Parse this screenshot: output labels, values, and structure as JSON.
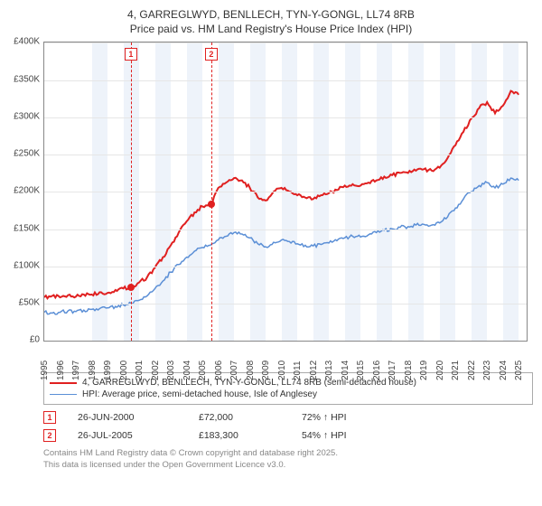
{
  "title_line1": "4, GARREGLWYD, BENLLECH, TYN-Y-GONGL, LL74 8RB",
  "title_line2": "Price paid vs. HM Land Registry's House Price Index (HPI)",
  "chart": {
    "type": "line",
    "background_color": "#ffffff",
    "grid_color": "#e6e6e6",
    "axis_color": "#888888",
    "band_color": "#eef3fa",
    "label_fontsize": 10,
    "x_years": [
      1995,
      1996,
      1997,
      1998,
      1999,
      2000,
      2001,
      2002,
      2003,
      2004,
      2005,
      2006,
      2007,
      2008,
      2009,
      2010,
      2011,
      2012,
      2013,
      2014,
      2015,
      2016,
      2017,
      2018,
      2019,
      2020,
      2021,
      2022,
      2023,
      2024,
      2025
    ],
    "xlim": [
      1995,
      2025.5
    ],
    "ylim": [
      0,
      400000
    ],
    "ytick_step": 50000,
    "y_tick_labels": [
      "£0",
      "£50K",
      "£100K",
      "£150K",
      "£200K",
      "£250K",
      "£300K",
      "£350K",
      "£400K"
    ],
    "alt_band_start_index": 3,
    "series": [
      {
        "id": "price_paid",
        "label": "4, GARREGLWYD, BENLLECH, TYN-Y-GONGL, LL74 8RB (semi-detached house)",
        "color": "#e02020",
        "line_width": 2,
        "data": [
          [
            1995.0,
            58000
          ],
          [
            1995.5,
            60000
          ],
          [
            1996.0,
            58000
          ],
          [
            1996.5,
            61000
          ],
          [
            1997.0,
            59000
          ],
          [
            1997.5,
            62000
          ],
          [
            1998.0,
            62000
          ],
          [
            1998.5,
            65000
          ],
          [
            1999.0,
            64000
          ],
          [
            1999.5,
            68000
          ],
          [
            2000.0,
            70000
          ],
          [
            2000.48,
            72000
          ],
          [
            2001.0,
            78000
          ],
          [
            2001.5,
            85000
          ],
          [
            2002.0,
            98000
          ],
          [
            2002.5,
            112000
          ],
          [
            2003.0,
            128000
          ],
          [
            2003.5,
            145000
          ],
          [
            2004.0,
            160000
          ],
          [
            2004.5,
            172000
          ],
          [
            2005.0,
            180000
          ],
          [
            2005.56,
            183300
          ],
          [
            2006.0,
            205000
          ],
          [
            2006.5,
            212000
          ],
          [
            2007.0,
            218000
          ],
          [
            2007.5,
            215000
          ],
          [
            2008.0,
            205000
          ],
          [
            2008.5,
            192000
          ],
          [
            2009.0,
            188000
          ],
          [
            2009.5,
            200000
          ],
          [
            2010.0,
            205000
          ],
          [
            2010.5,
            200000
          ],
          [
            2011.0,
            195000
          ],
          [
            2011.5,
            192000
          ],
          [
            2012.0,
            190000
          ],
          [
            2012.5,
            195000
          ],
          [
            2013.0,
            198000
          ],
          [
            2013.5,
            202000
          ],
          [
            2014.0,
            208000
          ],
          [
            2014.5,
            210000
          ],
          [
            2015.0,
            208000
          ],
          [
            2015.5,
            212000
          ],
          [
            2016.0,
            215000
          ],
          [
            2016.5,
            220000
          ],
          [
            2017.0,
            222000
          ],
          [
            2017.5,
            225000
          ],
          [
            2018.0,
            225000
          ],
          [
            2018.5,
            228000
          ],
          [
            2019.0,
            230000
          ],
          [
            2019.5,
            228000
          ],
          [
            2020.0,
            232000
          ],
          [
            2020.5,
            245000
          ],
          [
            2021.0,
            262000
          ],
          [
            2021.5,
            280000
          ],
          [
            2022.0,
            298000
          ],
          [
            2022.5,
            312000
          ],
          [
            2023.0,
            320000
          ],
          [
            2023.5,
            305000
          ],
          [
            2024.0,
            315000
          ],
          [
            2024.5,
            335000
          ],
          [
            2025.0,
            330000
          ]
        ]
      },
      {
        "id": "hpi",
        "label": "HPI: Average price, semi-detached house, Isle of Anglesey",
        "color": "#5b8fd6",
        "line_width": 1.5,
        "data": [
          [
            1995.0,
            38000
          ],
          [
            1995.5,
            37000
          ],
          [
            1996.0,
            38000
          ],
          [
            1996.5,
            40000
          ],
          [
            1997.0,
            39000
          ],
          [
            1997.5,
            41000
          ],
          [
            1998.0,
            42000
          ],
          [
            1998.5,
            43000
          ],
          [
            1999.0,
            44000
          ],
          [
            1999.5,
            46000
          ],
          [
            2000.0,
            48000
          ],
          [
            2000.5,
            50000
          ],
          [
            2001.0,
            54000
          ],
          [
            2001.5,
            60000
          ],
          [
            2002.0,
            70000
          ],
          [
            2002.5,
            80000
          ],
          [
            2003.0,
            92000
          ],
          [
            2003.5,
            102000
          ],
          [
            2004.0,
            112000
          ],
          [
            2004.5,
            120000
          ],
          [
            2005.0,
            125000
          ],
          [
            2005.5,
            128000
          ],
          [
            2006.0,
            135000
          ],
          [
            2006.5,
            140000
          ],
          [
            2007.0,
            145000
          ],
          [
            2007.5,
            143000
          ],
          [
            2008.0,
            138000
          ],
          [
            2008.5,
            130000
          ],
          [
            2009.0,
            126000
          ],
          [
            2009.5,
            132000
          ],
          [
            2010.0,
            135000
          ],
          [
            2010.5,
            133000
          ],
          [
            2011.0,
            130000
          ],
          [
            2011.5,
            128000
          ],
          [
            2012.0,
            127000
          ],
          [
            2012.5,
            129000
          ],
          [
            2013.0,
            131000
          ],
          [
            2013.5,
            134000
          ],
          [
            2014.0,
            138000
          ],
          [
            2014.5,
            140000
          ],
          [
            2015.0,
            139000
          ],
          [
            2015.5,
            142000
          ],
          [
            2016.0,
            145000
          ],
          [
            2016.5,
            148000
          ],
          [
            2017.0,
            150000
          ],
          [
            2017.5,
            152000
          ],
          [
            2018.0,
            153000
          ],
          [
            2018.5,
            155000
          ],
          [
            2019.0,
            156000
          ],
          [
            2019.5,
            155000
          ],
          [
            2020.0,
            158000
          ],
          [
            2020.5,
            166000
          ],
          [
            2021.0,
            178000
          ],
          [
            2021.5,
            190000
          ],
          [
            2022.0,
            200000
          ],
          [
            2022.5,
            208000
          ],
          [
            2023.0,
            212000
          ],
          [
            2023.5,
            205000
          ],
          [
            2024.0,
            210000
          ],
          [
            2024.5,
            218000
          ],
          [
            2025.0,
            215000
          ]
        ]
      }
    ],
    "markers": [
      {
        "n": "1",
        "x": 2000.48,
        "y": 72000,
        "color": "#e02020"
      },
      {
        "n": "2",
        "x": 2005.56,
        "y": 183300,
        "color": "#e02020"
      }
    ]
  },
  "sales": [
    {
      "n": "1",
      "date": "26-JUN-2000",
      "price": "£72,000",
      "delta": "72% ↑ HPI",
      "color": "#e02020"
    },
    {
      "n": "2",
      "date": "26-JUL-2005",
      "price": "£183,300",
      "delta": "54% ↑ HPI",
      "color": "#e02020"
    }
  ],
  "footer_line1": "Contains HM Land Registry data © Crown copyright and database right 2025.",
  "footer_line2": "This data is licensed under the Open Government Licence v3.0."
}
